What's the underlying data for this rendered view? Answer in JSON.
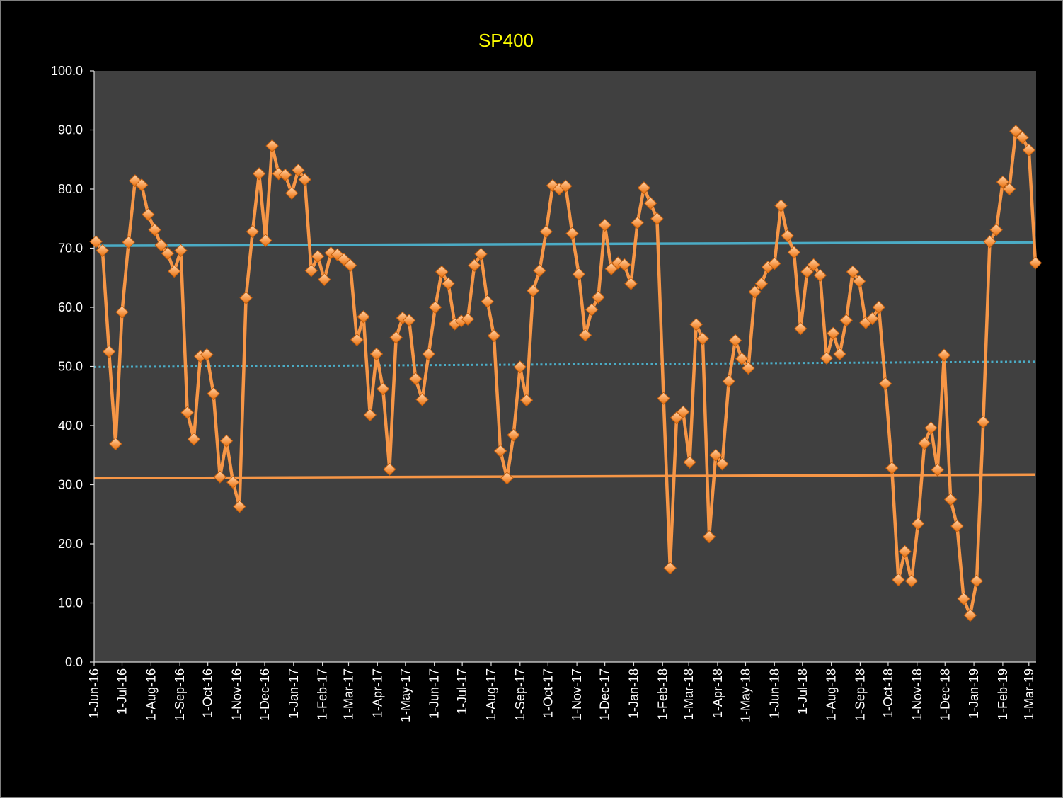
{
  "chart_data": {
    "type": "line",
    "title": "SP400",
    "xlim": [
      42522,
      43532
    ],
    "ylim": [
      0,
      100
    ],
    "grid": false,
    "y_ticks": [
      "0.0",
      "10.0",
      "20.0",
      "30.0",
      "40.0",
      "50.0",
      "60.0",
      "70.0",
      "80.0",
      "90.0",
      "100.0"
    ],
    "x_ticks": [
      "1-Jun-16",
      "1-Jul-16",
      "1-Aug-16",
      "1-Sep-16",
      "1-Oct-16",
      "1-Nov-16",
      "1-Dec-16",
      "1-Jan-17",
      "1-Feb-17",
      "1-Mar-17",
      "1-Apr-17",
      "1-May-17",
      "1-Jun-17",
      "1-Jul-17",
      "1-Aug-17",
      "1-Sep-17",
      "1-Oct-17",
      "1-Nov-17",
      "1-Dec-17",
      "1-Jan-18",
      "1-Feb-18",
      "1-Mar-18",
      "1-Apr-18",
      "1-May-18",
      "1-Jun-18",
      "1-Jul-18",
      "1-Aug-18",
      "1-Sep-18",
      "1-Oct-18",
      "1-Nov-18",
      "1-Dec-18",
      "1-Jan-19",
      "1-Feb-19",
      "1-Mar-19"
    ],
    "series": [
      {
        "color": "#F79646",
        "x_start": 42524,
        "x_step": 7,
        "values": [
          71.1,
          69.6,
          52.5,
          36.9,
          59.2,
          71.0,
          81.4,
          80.7,
          75.7,
          73.1,
          70.5,
          69.1,
          66.1,
          69.6,
          42.2,
          37.7,
          51.7,
          52.0,
          45.4,
          31.3,
          37.4,
          30.4,
          26.3,
          61.6,
          72.8,
          82.6,
          71.3,
          87.3,
          82.6,
          82.4,
          79.3,
          83.2,
          81.6,
          66.2,
          68.6,
          64.7,
          69.2,
          68.9,
          68.1,
          67.1,
          54.5,
          58.4,
          41.8,
          52.1,
          46.2,
          32.6,
          54.9,
          58.2,
          57.8,
          47.9,
          44.4,
          52.1,
          60.0,
          66.0,
          64.0,
          57.2,
          57.7,
          58.0,
          67.1,
          69.0,
          61.0,
          55.2,
          35.7,
          31.1,
          38.4,
          49.9,
          44.3,
          62.8,
          66.2,
          72.8,
          80.6,
          80.0,
          80.5,
          72.5,
          65.6,
          55.3,
          59.6,
          61.7,
          73.9,
          66.5,
          67.5,
          67.2,
          64.0,
          74.3,
          80.2,
          77.6,
          75.0,
          44.6,
          15.9,
          41.3,
          42.3,
          33.8,
          57.1,
          54.7,
          21.2,
          35.0,
          33.5,
          47.5,
          54.4,
          51.3,
          49.7,
          62.6,
          64.0,
          66.8,
          67.4,
          77.2,
          72.1,
          69.3,
          56.4,
          66.0,
          67.2,
          65.4,
          51.4,
          55.6,
          52.1,
          57.8,
          66.0,
          64.4,
          57.4,
          58.1,
          60.0,
          47.1,
          32.8,
          13.9,
          18.7,
          13.7,
          23.4,
          37.0,
          39.6,
          32.5,
          51.9,
          27.5,
          23.0,
          10.7,
          7.9,
          13.7,
          40.6,
          71.1,
          73.1,
          81.2,
          80.0,
          89.8,
          88.7,
          86.6,
          67.5
        ]
      }
    ],
    "trend_lines": [
      {
        "color": "#4BACC6",
        "dotted": false,
        "y_start": 70.4,
        "y_end": 71.0
      },
      {
        "color": "#4BACC6",
        "dotted": true,
        "y_start": 49.9,
        "y_end": 50.8
      },
      {
        "color": "#F79646",
        "dotted": false,
        "y_start": 31.1,
        "y_end": 31.7
      }
    ],
    "colors": {
      "background": "#000000",
      "border": "#7F7F7F",
      "plot_area": "#404040",
      "title": "#FFFF00",
      "text": "#FFFFFF",
      "axis": "#D9D9D9"
    }
  }
}
